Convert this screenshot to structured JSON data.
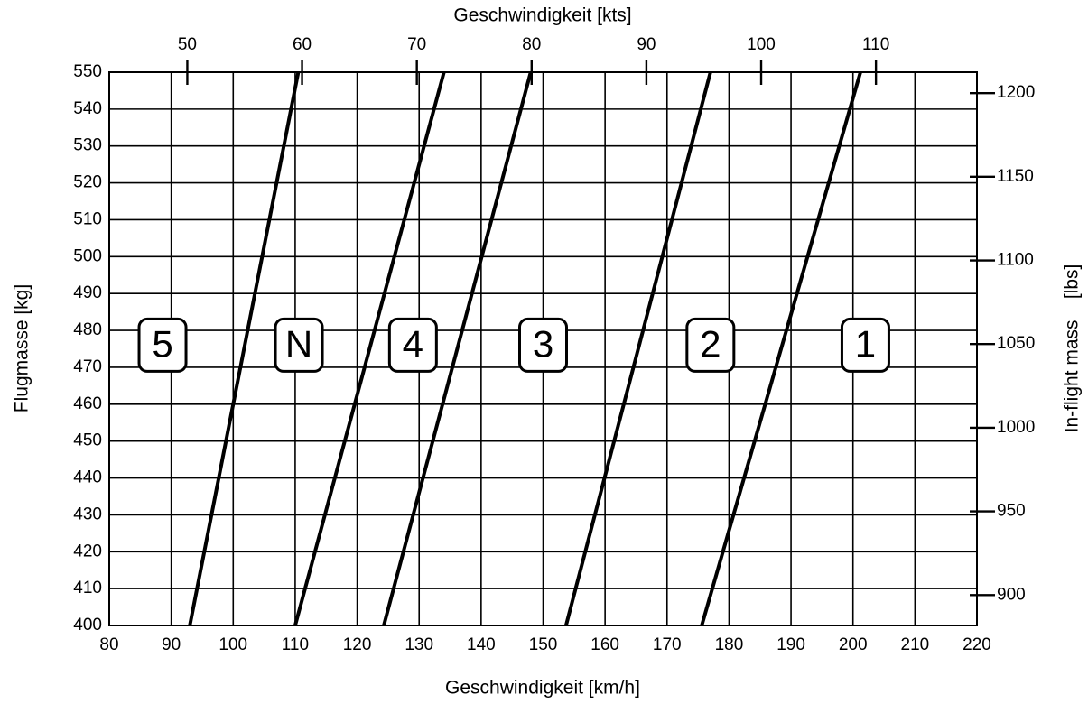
{
  "chart_data": {
    "type": "line",
    "xlabel": "Geschwindigkeit [km/h]",
    "x2label": "Geschwindigkeit [kts]",
    "ylabel": "Flugmasse [kg]",
    "y2label": "In-flight mass    [lbs]",
    "xlim": [
      80,
      220
    ],
    "xticks": [
      80,
      90,
      100,
      110,
      120,
      130,
      140,
      150,
      160,
      170,
      180,
      190,
      200,
      210,
      220
    ],
    "x2lim": [
      43.2,
      118.8
    ],
    "x2ticks": [
      50,
      60,
      70,
      80,
      90,
      100,
      110
    ],
    "ylim": [
      400,
      550
    ],
    "yticks": [
      400,
      410,
      420,
      430,
      440,
      450,
      460,
      470,
      480,
      490,
      500,
      510,
      520,
      530,
      540,
      550
    ],
    "y2lim": [
      881.8,
      1212.5
    ],
    "y2ticks": [
      900,
      950,
      1000,
      1050,
      1100,
      1150,
      1200
    ],
    "grid": true,
    "series": [
      {
        "color": "#000000",
        "x": [
          93,
          110.5
        ],
        "values": [
          400,
          550
        ]
      },
      {
        "color": "#000000",
        "x": [
          110,
          134
        ],
        "values": [
          400,
          550
        ]
      },
      {
        "color": "#000000",
        "x": [
          124.3,
          148
        ],
        "values": [
          400,
          550
        ]
      },
      {
        "color": "#000000",
        "x": [
          153.7,
          177
        ],
        "values": [
          400,
          550
        ]
      },
      {
        "color": "#000000",
        "x": [
          175.6,
          201.2
        ],
        "values": [
          400,
          550
        ]
      }
    ],
    "annotations": [
      {
        "text": "5",
        "x": 88.6,
        "y": 476
      },
      {
        "text": "N",
        "x": 110.6,
        "y": 476
      },
      {
        "text": "4",
        "x": 129,
        "y": 476
      },
      {
        "text": "3",
        "x": 150,
        "y": 476
      },
      {
        "text": "2",
        "x": 177,
        "y": 476
      },
      {
        "text": "1",
        "x": 202,
        "y": 476
      }
    ]
  }
}
